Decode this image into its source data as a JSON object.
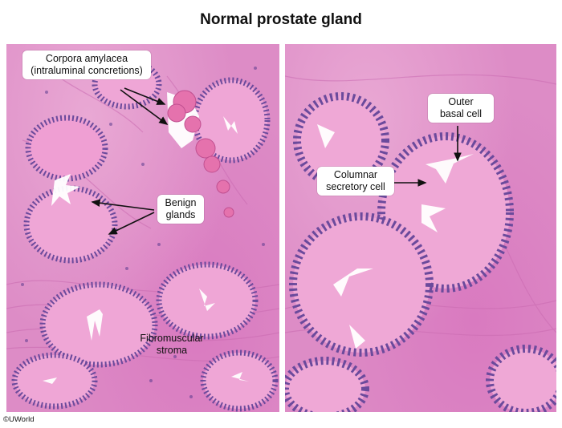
{
  "title": "Normal prostate gland",
  "labels": {
    "corpora": "Corpora amylacea\n(intraluminal concretions)",
    "benign": "Benign\nglands",
    "stroma": "Fibromuscular\nstroma",
    "basal": "Outer\nbasal cell",
    "columnar": "Columnar\nsecretory cell"
  },
  "credit": "©UWorld",
  "colors": {
    "stroma": "#dd8cc6",
    "nuclei": "#5a3b8e",
    "lumen": "#ffffff",
    "concretion": "#e06fa3"
  }
}
